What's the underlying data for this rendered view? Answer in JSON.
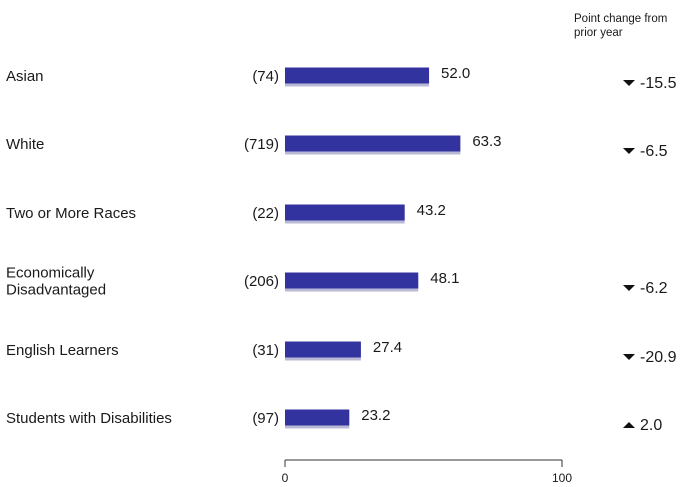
{
  "chart_data": {
    "type": "bar",
    "orientation": "horizontal",
    "change_header": [
      "Point change from",
      "prior year"
    ],
    "categories": [
      "Asian",
      "White",
      "Two or More Races",
      "Economically Disadvantaged",
      "English Learners",
      "Students with Disabilities"
    ],
    "category_lines": [
      [
        "Asian"
      ],
      [
        "White"
      ],
      [
        "Two or More Races"
      ],
      [
        "Economically",
        "Disadvantaged"
      ],
      [
        "English Learners"
      ],
      [
        "Students with Disabilities"
      ]
    ],
    "counts": [
      "(74)",
      "(719)",
      "(22)",
      "(206)",
      "(31)",
      "(97)"
    ],
    "values": [
      52.0,
      63.3,
      43.2,
      48.1,
      27.4,
      23.2
    ],
    "value_labels": [
      "52.0",
      "63.3",
      "43.2",
      "48.1",
      "27.4",
      "23.2"
    ],
    "changes": [
      {
        "direction": "down",
        "label": "-15.5"
      },
      {
        "direction": "down",
        "label": "-6.5"
      },
      null,
      {
        "direction": "down",
        "label": "-6.2"
      },
      {
        "direction": "down",
        "label": "-20.9"
      },
      {
        "direction": "up",
        "label": "2.0"
      }
    ],
    "xlim": [
      0,
      100
    ],
    "x_ticks": [
      0,
      100
    ],
    "x_tick_labels": [
      "0",
      "100"
    ],
    "bar_color": "#3333a0",
    "grid": false
  }
}
